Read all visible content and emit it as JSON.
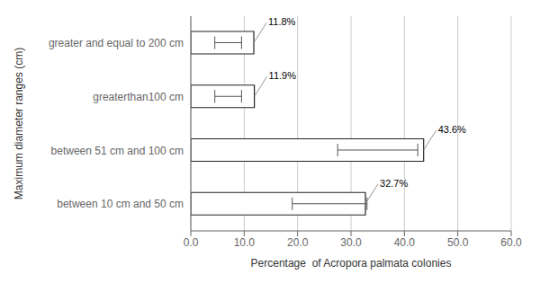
{
  "chart_data": {
    "type": "bar",
    "orientation": "horizontal",
    "categories": [
      "between 10 cm and 50 cm",
      "between 51 cm and 100 cm",
      "greaterthan100 cm",
      "greater and equal to 200 cm"
    ],
    "values": [
      32.7,
      43.6,
      11.9,
      11.8
    ],
    "value_labels": [
      "32.7%",
      "43.6%",
      "11.9%",
      "11.8%"
    ],
    "data_labels": true,
    "err_centers": [
      26.0,
      35.0,
      7.0,
      7.0
    ],
    "err_low": [
      7.0,
      7.5,
      2.5,
      2.5
    ],
    "err_high": [
      7.0,
      7.5,
      2.5,
      2.5
    ],
    "color": "#ffffff",
    "xlabel": "Percentage  of Acropora palmata colonies",
    "ylabel": "Maximum diameter ranges (cm)",
    "xlim": [
      0.0,
      60.0
    ],
    "xticks": [
      {
        "value": 0,
        "label": "0.0"
      },
      {
        "value": 10,
        "label": "10.0"
      },
      {
        "value": 20,
        "label": "20.0"
      },
      {
        "value": 30,
        "label": "30.0"
      },
      {
        "value": 40,
        "label": "40.0"
      },
      {
        "value": 50,
        "label": "50.0"
      },
      {
        "value": 60,
        "label": "60.0"
      }
    ],
    "grid": true
  }
}
